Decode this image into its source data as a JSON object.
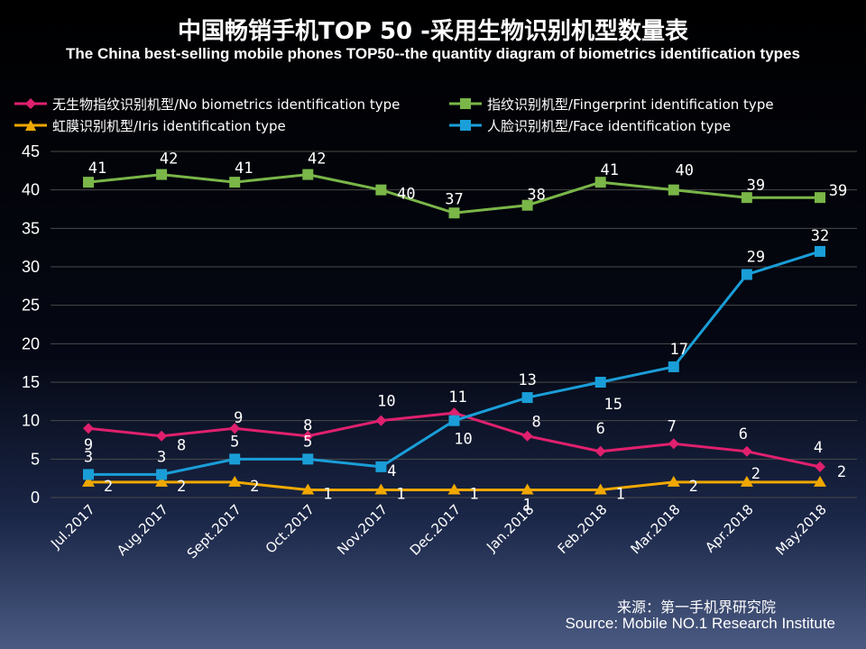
{
  "chart_data": {
    "type": "line",
    "title": "中国畅销手机TOP 50 -采用生物识别机型数量表",
    "subtitle": "The China best-selling mobile phones TOP50--the quantity diagram of biometrics identification types",
    "xlabel": "",
    "ylabel": "",
    "ylim": [
      0,
      45
    ],
    "yticks": [
      0,
      5,
      10,
      15,
      20,
      25,
      30,
      35,
      40,
      45
    ],
    "grid": true,
    "legend_position": "top",
    "categories": [
      "Jul.2017",
      "Aug.2017",
      "Sept.2017",
      "Oct.2017",
      "Nov.2017",
      "Dec.2017",
      "Jan.2018",
      "Feb.2018",
      "Mar.2018",
      "Apr.2018",
      "May.2018"
    ],
    "series": [
      {
        "name": "无生物指纹识别机型/No biometrics identification type",
        "color": "#e0206e",
        "marker": "diamond",
        "values": [
          9,
          8,
          9,
          8,
          10,
          11,
          8,
          6,
          7,
          6,
          4
        ]
      },
      {
        "name": "指纹识别机型/Fingerprint identification type",
        "color": "#7ab648",
        "marker": "square",
        "values": [
          41,
          42,
          41,
          42,
          40,
          37,
          38,
          41,
          40,
          39,
          39
        ]
      },
      {
        "name": "虹膜识别机型/Iris identification type",
        "color": "#f0a800",
        "marker": "triangle",
        "values": [
          2,
          2,
          2,
          1,
          1,
          1,
          1,
          1,
          2,
          2,
          2
        ]
      },
      {
        "name": "人脸识别机型/Face identification type",
        "color": "#1a9ed8",
        "marker": "square",
        "values": [
          3,
          3,
          5,
          5,
          4,
          10,
          13,
          15,
          17,
          29,
          32
        ]
      }
    ]
  },
  "source": {
    "cn": "来源：第一手机界研究院",
    "en": "Source: Mobile NO.1 Research Institute"
  }
}
